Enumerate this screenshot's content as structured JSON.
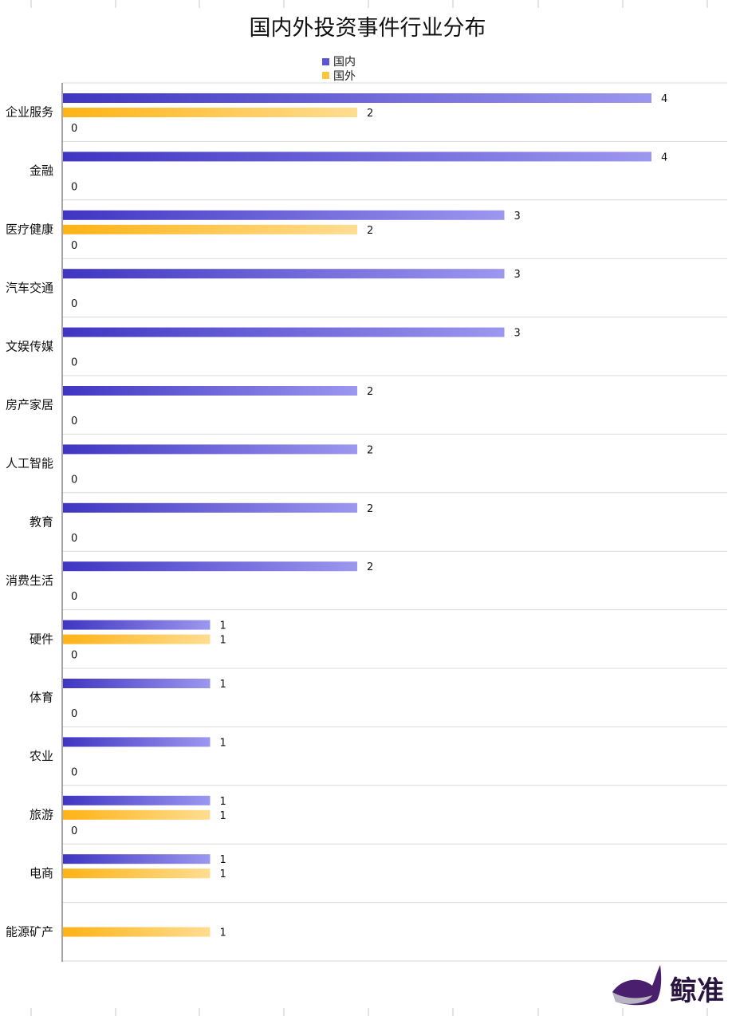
{
  "chart_data": {
    "type": "bar",
    "orientation": "horizontal",
    "title": "国内外投资事件行业分布",
    "categories": [
      "企业服务",
      "金融",
      "医疗健康",
      "汽车交通",
      "文娱传媒",
      "房产家居",
      "人工智能",
      "教育",
      "消费生活",
      "硬件",
      "体育",
      "农业",
      "旅游",
      "电商",
      "能源矿产"
    ],
    "series": [
      {
        "name": "国内",
        "values": [
          4,
          4,
          3,
          3,
          3,
          2,
          2,
          2,
          2,
          1,
          1,
          1,
          1,
          1,
          null
        ],
        "color_start": "#3f35c2",
        "color_end": "#9c97ef"
      },
      {
        "name": "国外",
        "values": [
          2,
          null,
          2,
          null,
          null,
          null,
          null,
          null,
          null,
          1,
          null,
          null,
          1,
          1,
          1
        ],
        "color_start": "#ffb315",
        "color_end": "#ffdd90"
      },
      {
        "name": "",
        "values": [
          0,
          0,
          0,
          0,
          0,
          0,
          0,
          0,
          0,
          0,
          0,
          0,
          0,
          null,
          null
        ]
      }
    ],
    "xlim": [
      0,
      7.6
    ],
    "grid": true,
    "legend_position": "top-center"
  },
  "logo": {
    "text": "鲸准",
    "icon": "whale-icon"
  }
}
